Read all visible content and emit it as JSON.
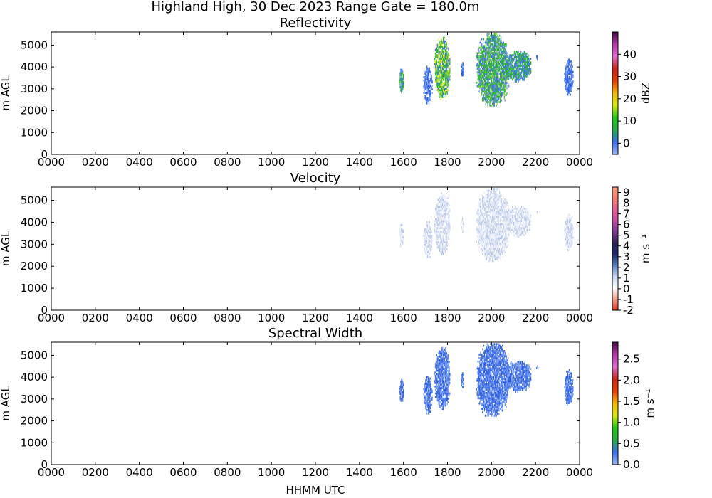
{
  "suptitle": "Highland High, 30 Dec 2023 Range Gate = 180.0m",
  "xlabel": "HHMM UTC",
  "chart_data": [
    {
      "type": "heatmap",
      "title": "Reflectivity",
      "ylabel": "m AGL",
      "xlim": [
        0,
        24
      ],
      "ylim": [
        0,
        5600
      ],
      "x_ticks": [
        "0000",
        "0200",
        "0400",
        "0600",
        "0800",
        "1000",
        "1200",
        "1400",
        "1600",
        "1800",
        "2000",
        "2200",
        "0000"
      ],
      "y_ticks": [
        0,
        1000,
        2000,
        3000,
        4000,
        5000
      ],
      "colorbar": {
        "label": "dBZ",
        "range": [
          -5,
          50
        ],
        "ticks": [
          "0",
          "10",
          "20",
          "30",
          "40"
        ],
        "tick_values": [
          0,
          10,
          20,
          30,
          40
        ],
        "colors": [
          "#9cb4f0",
          "#3f6fe8",
          "#2fa84a",
          "#25c21b",
          "#d6e81a",
          "#f0b90f",
          "#e6400a",
          "#c8261c",
          "#d86ec9",
          "#b03aa8",
          "#3d0d3a"
        ]
      },
      "echoes": [
        {
          "x_start": 15.8,
          "x_end": 16.0,
          "y_bottom": 2800,
          "y_top": 3900,
          "dominant": "blue-green"
        },
        {
          "x_start": 16.9,
          "x_end": 17.3,
          "y_bottom": 2300,
          "y_top": 4000,
          "dominant": "blue"
        },
        {
          "x_start": 17.4,
          "x_end": 18.1,
          "y_bottom": 2500,
          "y_top": 5300,
          "dominant": "green-yellow"
        },
        {
          "x_start": 18.6,
          "x_end": 18.75,
          "y_bottom": 3500,
          "y_top": 4200,
          "dominant": "blue"
        },
        {
          "x_start": 19.3,
          "x_end": 20.8,
          "y_bottom": 2200,
          "y_top": 5500,
          "dominant": "green"
        },
        {
          "x_start": 20.6,
          "x_end": 21.8,
          "y_bottom": 3300,
          "y_top": 4700,
          "dominant": "green-blue"
        },
        {
          "x_start": 22.0,
          "x_end": 22.1,
          "y_bottom": 4300,
          "y_top": 4500,
          "dominant": "blue"
        },
        {
          "x_start": 23.3,
          "x_end": 23.7,
          "y_bottom": 2700,
          "y_top": 4300,
          "dominant": "blue"
        }
      ]
    },
    {
      "type": "heatmap",
      "title": "Velocity",
      "ylabel": "m AGL",
      "xlim": [
        0,
        24
      ],
      "ylim": [
        0,
        5600
      ],
      "x_ticks": [
        "0000",
        "0200",
        "0400",
        "0600",
        "0800",
        "1000",
        "1200",
        "1400",
        "1600",
        "1800",
        "2000",
        "2200",
        "0000"
      ],
      "y_ticks": [
        0,
        1000,
        2000,
        3000,
        4000,
        5000
      ],
      "colorbar": {
        "label": "m s⁻¹",
        "range": [
          -2,
          9.5
        ],
        "ticks": [
          "-2",
          "-1",
          "0",
          "1",
          "2",
          "3",
          "4",
          "5",
          "6",
          "7",
          "8",
          "9"
        ],
        "tick_values": [
          -2,
          -1,
          0,
          1,
          2,
          3,
          4,
          5,
          6,
          7,
          8,
          9
        ],
        "colors": [
          "#d83a2a",
          "#f0a090",
          "#ffffff",
          "#c8d4ee",
          "#5a80c0",
          "#1a2a6a",
          "#302050",
          "#7a3a90",
          "#c050a0",
          "#e06090",
          "#f08070",
          "#f4a080"
        ]
      },
      "echoes": [
        {
          "x_start": 15.8,
          "x_end": 16.0,
          "y_bottom": 2800,
          "y_top": 3900,
          "dominant": "light-blue"
        },
        {
          "x_start": 16.9,
          "x_end": 17.3,
          "y_bottom": 2300,
          "y_top": 4000,
          "dominant": "light-blue"
        },
        {
          "x_start": 17.4,
          "x_end": 18.1,
          "y_bottom": 2500,
          "y_top": 5300,
          "dominant": "light-blue"
        },
        {
          "x_start": 18.6,
          "x_end": 18.75,
          "y_bottom": 3500,
          "y_top": 4200,
          "dominant": "light-blue"
        },
        {
          "x_start": 19.3,
          "x_end": 20.8,
          "y_bottom": 2200,
          "y_top": 5500,
          "dominant": "light-blue"
        },
        {
          "x_start": 20.6,
          "x_end": 21.8,
          "y_bottom": 3300,
          "y_top": 4700,
          "dominant": "light-blue"
        },
        {
          "x_start": 22.0,
          "x_end": 22.1,
          "y_bottom": 4300,
          "y_top": 4500,
          "dominant": "light-blue"
        },
        {
          "x_start": 23.3,
          "x_end": 23.7,
          "y_bottom": 2700,
          "y_top": 4300,
          "dominant": "light-blue"
        }
      ]
    },
    {
      "type": "heatmap",
      "title": "Spectral Width",
      "ylabel": "m AGL",
      "xlim": [
        0,
        24
      ],
      "ylim": [
        0,
        5600
      ],
      "x_ticks": [
        "0000",
        "0200",
        "0400",
        "0600",
        "0800",
        "1000",
        "1200",
        "1400",
        "1600",
        "1800",
        "2000",
        "2200",
        "0000"
      ],
      "y_ticks": [
        0,
        1000,
        2000,
        3000,
        4000,
        5000
      ],
      "colorbar": {
        "label": "m s⁻¹",
        "range": [
          0,
          2.9
        ],
        "ticks": [
          "0.0",
          "0.5",
          "1.0",
          "1.5",
          "2.0",
          "2.5"
        ],
        "tick_values": [
          0,
          0.5,
          1,
          1.5,
          2,
          2.5
        ],
        "colors": [
          "#9cb4f0",
          "#3f6fe8",
          "#2fa84a",
          "#25c21b",
          "#d6e81a",
          "#f0b90f",
          "#e6400a",
          "#c8261c",
          "#d86ec9",
          "#b03aa8",
          "#3d0d3a"
        ]
      },
      "echoes": [
        {
          "x_start": 15.8,
          "x_end": 16.0,
          "y_bottom": 2800,
          "y_top": 3900,
          "dominant": "blue"
        },
        {
          "x_start": 16.9,
          "x_end": 17.3,
          "y_bottom": 2300,
          "y_top": 4000,
          "dominant": "blue"
        },
        {
          "x_start": 17.4,
          "x_end": 18.1,
          "y_bottom": 2500,
          "y_top": 5300,
          "dominant": "blue"
        },
        {
          "x_start": 18.6,
          "x_end": 18.75,
          "y_bottom": 3500,
          "y_top": 4200,
          "dominant": "blue"
        },
        {
          "x_start": 19.3,
          "x_end": 20.8,
          "y_bottom": 2200,
          "y_top": 5500,
          "dominant": "blue"
        },
        {
          "x_start": 20.6,
          "x_end": 21.8,
          "y_bottom": 3300,
          "y_top": 4700,
          "dominant": "blue"
        },
        {
          "x_start": 22.0,
          "x_end": 22.1,
          "y_bottom": 4300,
          "y_top": 4500,
          "dominant": "blue"
        },
        {
          "x_start": 23.3,
          "x_end": 23.7,
          "y_bottom": 2700,
          "y_top": 4300,
          "dominant": "blue"
        }
      ]
    }
  ],
  "echo_colors": {
    "blue": [
      "#3f6fe8",
      "#5a86f0",
      "#2c5ad8",
      "#7a9ef2"
    ],
    "blue-green": [
      "#3f6fe8",
      "#2fa84a",
      "#5a86f0",
      "#25c21b"
    ],
    "green-yellow": [
      "#25c21b",
      "#2fa84a",
      "#d6e81a",
      "#3f6fe8",
      "#7ccf3a"
    ],
    "green": [
      "#2fa84a",
      "#25c21b",
      "#3f6fe8",
      "#7ccf3a",
      "#5a86f0"
    ],
    "green-blue": [
      "#3f6fe8",
      "#2fa84a",
      "#5a86f0",
      "#25c21b"
    ],
    "light-blue": [
      "#dfe6f5",
      "#c8d4ee",
      "#e9eef8",
      "#b5c5e8",
      "#f2f4fa"
    ]
  }
}
